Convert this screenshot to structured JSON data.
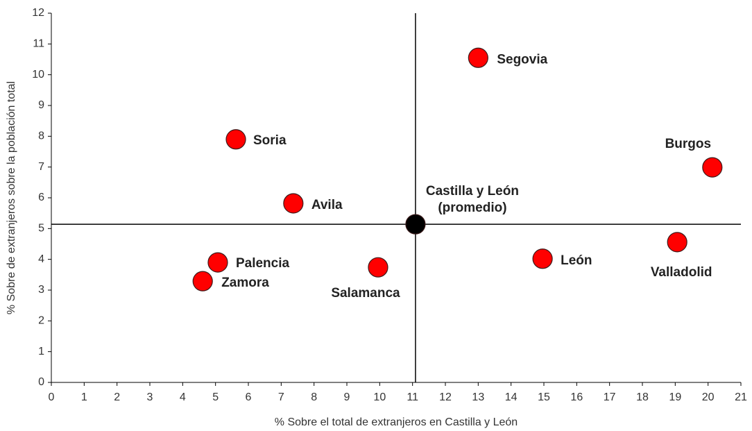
{
  "chart_data": {
    "type": "scatter",
    "xlabel": "% Sobre el total de extranjeros en Castilla y León",
    "ylabel": "% Sobre de extranjeros sobre la población total",
    "xlim": [
      0,
      21
    ],
    "xticks": [
      0,
      1,
      2,
      3,
      4,
      5,
      6,
      7,
      8,
      9,
      10,
      11,
      12,
      13,
      14,
      15,
      16,
      17,
      18,
      19,
      20,
      21
    ],
    "ylim": [
      0,
      12
    ],
    "yticks": [
      0,
      1,
      2,
      3,
      4,
      5,
      6,
      7,
      8,
      9,
      10,
      11,
      12
    ],
    "color": "#ff0000",
    "points": [
      {
        "label": "Segovia",
        "x": 13.0,
        "y": 10.55
      },
      {
        "label": "Soria",
        "x": 5.62,
        "y": 7.9
      },
      {
        "label": "Burgos",
        "x": 20.13,
        "y": 6.99
      },
      {
        "label": "Avila",
        "x": 7.37,
        "y": 5.82
      },
      {
        "label": [
          "Castilla y León",
          "(promedio)"
        ],
        "x": 11.09,
        "y": 5.14,
        "color": "#000000"
      },
      {
        "label": "Palencia",
        "x": 5.07,
        "y": 3.9
      },
      {
        "label": "Zamora",
        "x": 4.61,
        "y": 3.29
      },
      {
        "label": "Salamanca",
        "x": 9.95,
        "y": 3.74
      },
      {
        "label": "León",
        "x": 14.96,
        "y": 4.02
      },
      {
        "label": "Valladolid",
        "x": 19.06,
        "y": 4.56
      }
    ]
  }
}
